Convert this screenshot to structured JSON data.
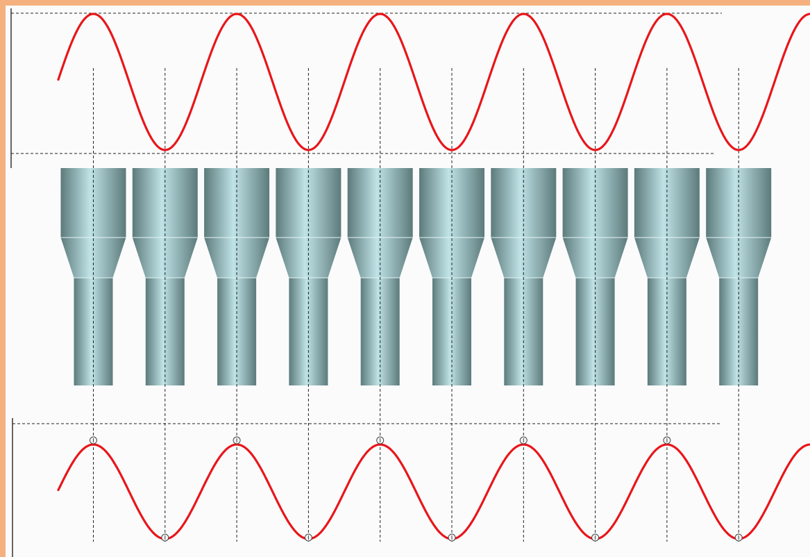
{
  "diagram": {
    "type": "sine-wave-vs-nozzle-array",
    "colors": {
      "frame_border": "#f4b07e",
      "background": "#fbfbfb",
      "wave": "#e8161a",
      "guide_line": "#222222",
      "axis": "#333333",
      "nozzle_dark": "#5c7a7b",
      "nozzle_light": "#bfe3e6",
      "nozzle_edge": "#e6f3f4",
      "marker": "#444444"
    },
    "nozzle_count": 10,
    "wave_periods_shown": 5,
    "top_wave": {
      "markers": false
    },
    "bottom_wave": {
      "markers": true
    }
  }
}
